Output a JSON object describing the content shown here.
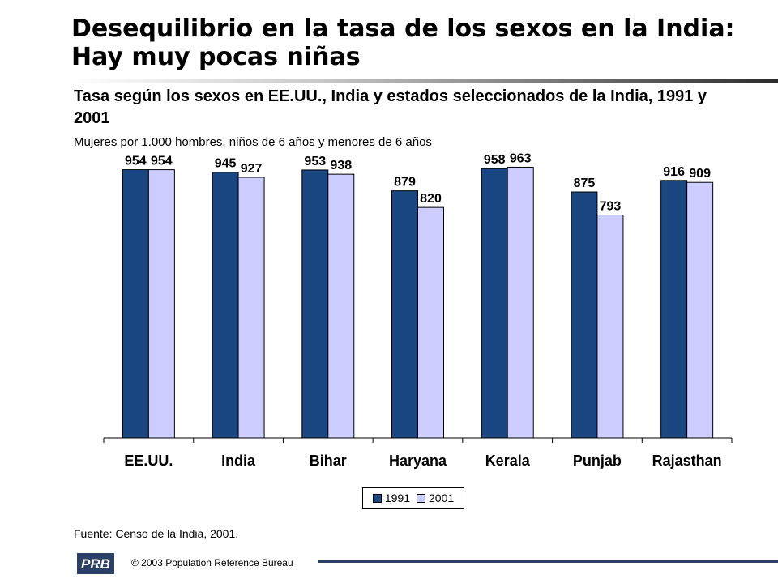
{
  "title": "Desequilibrio en la tasa de los sexos en la India: Hay muy pocas niñas",
  "subtitle": "Tasa según los sexos en EE.UU., India y estados seleccionados de la India, 1991 y 2001",
  "units_note": "Mujeres por 1.000 hombres, niños de 6 años y menores de 6 años",
  "source": "Fuente: Censo de la India, 2001.",
  "copyright": "© 2003 Population Reference Bureau",
  "logo_text": "PRB",
  "colors": {
    "series_1991": "#1a4682",
    "series_2001": "#ccccff",
    "footer_rule": "#2b4064"
  },
  "chart_data": {
    "type": "bar",
    "categories": [
      "EE.UU.",
      "India",
      "Bihar",
      "Haryana",
      "Kerala",
      "Punjab",
      "Rajasthan"
    ],
    "series": [
      {
        "name": "1991",
        "values": [
          954,
          945,
          953,
          879,
          958,
          875,
          916
        ]
      },
      {
        "name": "2001",
        "values": [
          954,
          927,
          938,
          820,
          963,
          793,
          909
        ]
      }
    ],
    "ylim": [
      0,
      1000
    ],
    "grid": false,
    "legend_position": "bottom-center",
    "data_labels": true
  }
}
